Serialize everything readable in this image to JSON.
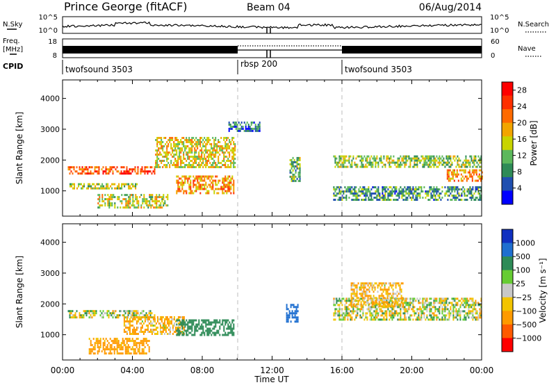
{
  "header": {
    "station": "Prince George (fitACF)",
    "beam": "Beam 04",
    "date": "06/Aug/2014"
  },
  "noise_panel": {
    "left_label": "N.Sky",
    "right_label": "N.Search",
    "ticks": [
      "10^5",
      "10^0"
    ]
  },
  "freq_panel": {
    "left_label_1": "Freq.",
    "left_label_2": "[MHz]",
    "left_ticks": [
      "18",
      "8"
    ],
    "right_label": "Nave",
    "right_ticks": [
      "60",
      "0"
    ]
  },
  "cpid_panel": {
    "label": "CPID",
    "segments": [
      "twofsound 3503",
      "rbsp 200",
      "twofsound 3503"
    ]
  },
  "colors": {
    "power": [
      "#0000ff",
      "#1f4fb0",
      "#2e8b57",
      "#5cb85c",
      "#c8d400",
      "#f2a500",
      "#ff6a00",
      "#ff3000",
      "#ff0000"
    ],
    "velocity": [
      "#ff0000",
      "#ff5a00",
      "#ff9a00",
      "#f2c400",
      "#c8c8c8",
      "#66cc33",
      "#2e8b57",
      "#1f6fd0",
      "#1030c0"
    ]
  },
  "chart_data": [
    {
      "type": "heatmap",
      "ylabel": "Slant Range [km]",
      "xlabel": "",
      "xlim": [
        "00:00",
        "24:00"
      ],
      "ylim": [
        180,
        4600
      ],
      "y_ticks": [
        "1000",
        "2000",
        "3000",
        "4000"
      ],
      "colorbar_label": "Power [dB]",
      "colorbar_ticks": [
        "4",
        "8",
        "12",
        "16",
        "20",
        "24",
        "28"
      ],
      "colorbar_range": [
        0,
        30
      ],
      "features": [
        {
          "t": [
            0.3,
            5.3
          ],
          "range": [
            1550,
            1800
          ],
          "value": 24
        },
        {
          "t": [
            5.3,
            9.9
          ],
          "range": [
            1800,
            2750
          ],
          "value": 16
        },
        {
          "t": [
            0.4,
            4.3
          ],
          "range": [
            1050,
            1250
          ],
          "value": 14
        },
        {
          "t": [
            2.0,
            6.0
          ],
          "range": [
            450,
            900
          ],
          "value": 15
        },
        {
          "t": [
            6.5,
            9.8
          ],
          "range": [
            900,
            1500
          ],
          "value": 20
        },
        {
          "t": [
            9.5,
            11.3
          ],
          "range": [
            2950,
            3250
          ],
          "value": 7
        },
        {
          "t": [
            13.0,
            13.6
          ],
          "range": [
            1350,
            2100
          ],
          "value": 11
        },
        {
          "t": [
            15.5,
            24.0
          ],
          "range": [
            1750,
            2150
          ],
          "value": 13
        },
        {
          "t": [
            15.5,
            24.0
          ],
          "range": [
            700,
            1150
          ],
          "value": 9
        },
        {
          "t": [
            22.0,
            24.0
          ],
          "range": [
            1350,
            1700
          ],
          "value": 20
        }
      ]
    },
    {
      "type": "heatmap",
      "ylabel": "Slant Range [km]",
      "xlabel": "Time UT",
      "x_ticks": [
        "00:00",
        "04:00",
        "08:00",
        "12:00",
        "16:00",
        "20:00",
        "00:00"
      ],
      "ylim": [
        180,
        4600
      ],
      "y_ticks": [
        "1000",
        "2000",
        "3000",
        "4000"
      ],
      "colorbar_label": "Velocity [m s⁻¹]",
      "colorbar_ticks": [
        "1000",
        "500",
        "100",
        "25",
        "−25",
        "−100",
        "−500",
        "−1000"
      ],
      "features": [
        {
          "t": [
            0.3,
            5.3
          ],
          "range": [
            1550,
            1800
          ],
          "value": 0
        },
        {
          "t": [
            1.5,
            5.0
          ],
          "range": [
            400,
            900
          ],
          "value": -200
        },
        {
          "t": [
            3.5,
            7.0
          ],
          "range": [
            1000,
            1600
          ],
          "value": -120
        },
        {
          "t": [
            6.5,
            9.8
          ],
          "range": [
            1000,
            1500
          ],
          "value": 300
        },
        {
          "t": [
            12.8,
            13.5
          ],
          "range": [
            1400,
            2000
          ],
          "value": 800
        },
        {
          "t": [
            15.5,
            24.0
          ],
          "range": [
            1500,
            2200
          ],
          "value": 0
        },
        {
          "t": [
            16.5,
            19.5
          ],
          "range": [
            1900,
            2700
          ],
          "value": -120
        }
      ]
    }
  ]
}
